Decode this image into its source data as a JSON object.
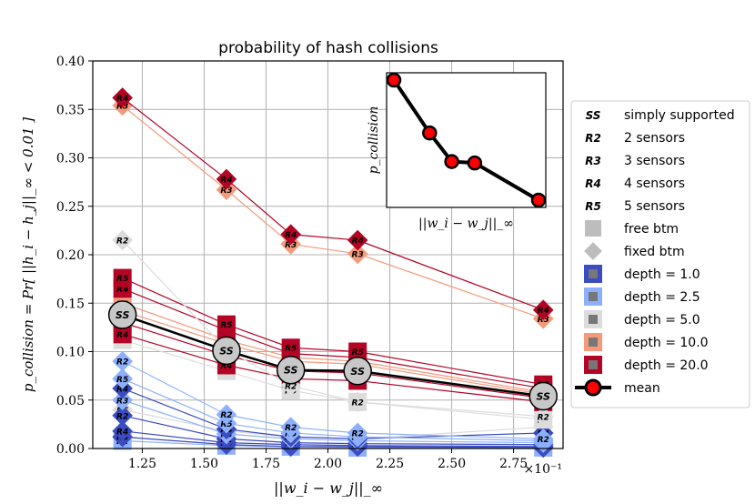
{
  "chart_data": {
    "type": "line",
    "title": "probability of hash collisions",
    "xlabel": "||w_i − w_j||_∞",
    "ylabel": "p_collision = Pr[ ||h_i − h_j||_∞ < 0.01 ]",
    "x_scale_label": "×10⁻¹",
    "xlim": [
      1.05,
      2.95
    ],
    "ylim": [
      0,
      0.4
    ],
    "x_ticks": [
      1.25,
      1.5,
      1.75,
      2.0,
      2.25,
      2.5,
      2.75
    ],
    "x_tick_labels": [
      "1.25",
      "1.50",
      "1.75",
      "2.00",
      "2.25",
      "2.50",
      "2.75"
    ],
    "y_ticks": [
      0,
      0.05,
      0.1,
      0.15,
      0.2,
      0.25,
      0.3,
      0.35,
      0.4
    ],
    "y_tick_labels": [
      "0.00",
      "0.05",
      "0.10",
      "0.15",
      "0.20",
      "0.25",
      "0.30",
      "0.35",
      "0.40"
    ],
    "grid": true,
    "x": [
      1.17,
      1.59,
      1.85,
      2.12,
      2.87
    ],
    "series": [
      {
        "name": "depth = 20.0 (fixed btm)",
        "depth": "20.0",
        "bc": "fixed",
        "values": [
          0.362,
          0.278,
          0.221,
          0.215,
          0.143
        ]
      },
      {
        "name": "depth = 10.0 (fixed btm)",
        "depth": "10.0",
        "bc": "fixed",
        "values": [
          0.354,
          0.267,
          0.211,
          0.201,
          0.134
        ]
      },
      {
        "name": "depth = 5.0 (fixed btm)",
        "depth": "5.0",
        "bc": "fixed",
        "values": [
          0.215,
          0.102,
          0.065,
          0.048,
          0.033
        ]
      },
      {
        "name": "depth = 20.0 (free btm)",
        "depth": "20.0",
        "bc": "free",
        "values": [
          0.176,
          0.128,
          0.104,
          0.1,
          0.066
        ]
      },
      {
        "name": "depth = 20.0 (free btm)",
        "depth": "20.0",
        "bc": "free",
        "values": [
          0.165,
          0.122,
          0.098,
          0.094,
          0.062
        ]
      },
      {
        "name": "depth = 10.0 (free btm)",
        "depth": "10.0",
        "bc": "free",
        "values": [
          0.15,
          0.112,
          0.094,
          0.09,
          0.058
        ]
      },
      {
        "name": "depth = 10.0 (free btm)",
        "depth": "10.0",
        "bc": "free",
        "values": [
          0.142,
          0.108,
          0.09,
          0.087,
          0.056
        ]
      },
      {
        "name": "depth = 20.0 (free btm)",
        "depth": "20.0",
        "bc": "free",
        "values": [
          0.13,
          0.096,
          0.08,
          0.078,
          0.052
        ]
      },
      {
        "name": "depth = 20.0 (free btm)",
        "depth": "20.0",
        "bc": "free",
        "values": [
          0.118,
          0.086,
          0.072,
          0.07,
          0.048
        ]
      },
      {
        "name": "depth = 5.0 (free btm)",
        "depth": "5.0",
        "bc": "free",
        "values": [
          0.112,
          0.08,
          0.06,
          0.048,
          0.03
        ]
      },
      {
        "name": "depth = 2.5 (fixed btm)",
        "depth": "2.5",
        "bc": "fixed",
        "values": [
          0.09,
          0.035,
          0.022,
          0.016,
          0.01
        ]
      },
      {
        "name": "depth = 2.5 (fixed btm)",
        "depth": "2.5",
        "bc": "fixed",
        "values": [
          0.072,
          0.026,
          0.016,
          0.012,
          0.008
        ]
      },
      {
        "name": "depth = 1.0 (fixed btm)",
        "depth": "1.0",
        "bc": "fixed",
        "values": [
          0.062,
          0.02,
          0.012,
          0.01,
          0.016
        ]
      },
      {
        "name": "depth = 2.5 (fixed btm)",
        "depth": "2.5",
        "bc": "fixed",
        "values": [
          0.05,
          0.015,
          0.01,
          0.008,
          0.006
        ]
      },
      {
        "name": "depth = 1.0 (fixed btm)",
        "depth": "1.0",
        "bc": "fixed",
        "values": [
          0.034,
          0.01,
          0.006,
          0.005,
          0.004
        ]
      },
      {
        "name": "depth = 5.0 (fixed btm)",
        "depth": "5.0",
        "bc": "fixed",
        "values": [
          0.04,
          0.018,
          0.012,
          0.01,
          0.022
        ]
      },
      {
        "name": "depth = 1.0 (fixed btm)",
        "depth": "1.0",
        "bc": "fixed",
        "values": [
          0.018,
          0.006,
          0.004,
          0.003,
          0.002
        ]
      },
      {
        "name": "depth = 1.0 (fixed btm)",
        "depth": "1.0",
        "bc": "fixed",
        "values": [
          0.012,
          0.004,
          0.002,
          0.002,
          0.001
        ]
      },
      {
        "name": "depth = 2.5 (free btm)",
        "depth": "2.5",
        "bc": "free",
        "values": [
          0.008,
          0.003,
          0.002,
          0.001,
          0.001
        ]
      },
      {
        "name": "mean",
        "depth": "mean",
        "bc": "mean",
        "values": [
          0.138,
          0.101,
          0.081,
          0.08,
          0.054
        ]
      }
    ],
    "legend": {
      "position": "right",
      "entries": [
        {
          "marker": "SS",
          "label": "simply supported"
        },
        {
          "marker": "R2",
          "label": "2 sensors"
        },
        {
          "marker": "R3",
          "label": "3 sensors"
        },
        {
          "marker": "R4",
          "label": "4 sensors"
        },
        {
          "marker": "R5",
          "label": "5 sensors"
        },
        {
          "marker": "square",
          "label": "free btm"
        },
        {
          "marker": "diamond",
          "label": "fixed btm"
        },
        {
          "marker": "depth",
          "color": "#3b4cc0",
          "label": "depth = 1.0"
        },
        {
          "marker": "depth",
          "color": "#8db0fe",
          "label": "depth = 2.5"
        },
        {
          "marker": "depth",
          "color": "#dddcdc",
          "label": "depth = 5.0"
        },
        {
          "marker": "depth",
          "color": "#f49a7b",
          "label": "depth = 10.0"
        },
        {
          "marker": "depth",
          "color": "#b40426",
          "label": "depth = 20.0"
        },
        {
          "marker": "mean",
          "label": "mean"
        }
      ]
    },
    "depth_colors": {
      "1.0": "#3b4cc0",
      "2.5": "#8db0fe",
      "5.0": "#dddcdc",
      "10.0": "#f49a7b",
      "20.0": "#b40426"
    },
    "inset": {
      "xlabel": "||w_i − w_j||_∞",
      "ylabel": "p_collision",
      "x": [
        1.17,
        1.59,
        1.85,
        2.12,
        2.87
      ],
      "values": [
        0.138,
        0.101,
        0.081,
        0.08,
        0.054
      ]
    }
  }
}
